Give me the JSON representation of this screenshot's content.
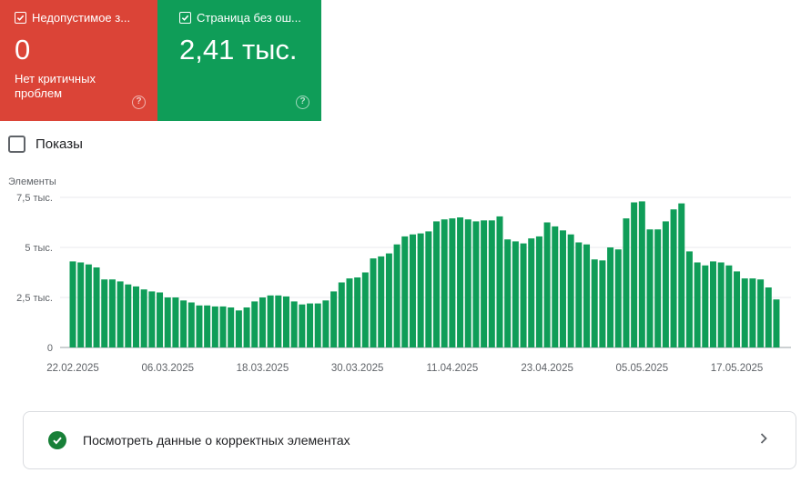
{
  "cards": {
    "error": {
      "title": "Недопустимое з...",
      "value": "0",
      "subtitle": "Нет критичных проблем",
      "color": "#db4437",
      "help_icon": "help-circle-icon"
    },
    "valid": {
      "title": "Страница без ош...",
      "value": "2,41 тыс.",
      "color": "#0f9d58",
      "help_icon": "help-circle-icon"
    }
  },
  "impressions": {
    "label": "Показы",
    "checked": false
  },
  "summary": {
    "label": "Посмотреть данные о корректных элементах",
    "icon": "check-circle-icon",
    "chevron": "chevron-right-icon"
  },
  "chart_data": {
    "type": "bar",
    "ylabel": "Элементы",
    "ylim": [
      0,
      7500
    ],
    "yticks": [
      0,
      2500,
      5000,
      7500
    ],
    "ytick_labels": [
      "0",
      "2,5 тыс.",
      "5 тыс.",
      "7,5 тыс."
    ],
    "xtick_labels": [
      {
        "index": 0,
        "label": "22.02.2025"
      },
      {
        "index": 12,
        "label": "06.03.2025"
      },
      {
        "index": 24,
        "label": "18.03.2025"
      },
      {
        "index": 36,
        "label": "30.03.2025"
      },
      {
        "index": 48,
        "label": "11.04.2025"
      },
      {
        "index": 60,
        "label": "23.04.2025"
      },
      {
        "index": 72,
        "label": "05.05.2025"
      },
      {
        "index": 84,
        "label": "17.05.2025"
      }
    ],
    "grid": true,
    "bar_color": "#0f9d58",
    "values": [
      4300,
      4250,
      4150,
      4000,
      3400,
      3400,
      3300,
      3150,
      3050,
      2900,
      2800,
      2750,
      2500,
      2500,
      2350,
      2250,
      2100,
      2100,
      2050,
      2050,
      2000,
      1850,
      2000,
      2300,
      2500,
      2600,
      2600,
      2550,
      2300,
      2150,
      2200,
      2200,
      2350,
      2800,
      3250,
      3450,
      3500,
      3750,
      4450,
      4550,
      4700,
      5150,
      5550,
      5650,
      5700,
      5800,
      6300,
      6400,
      6450,
      6500,
      6400,
      6300,
      6350,
      6350,
      6550,
      5400,
      5300,
      5200,
      5450,
      5550,
      6250,
      6050,
      5850,
      5650,
      5250,
      5150,
      4400,
      4350,
      5000,
      4900,
      6450,
      7250,
      7300,
      5900,
      5900,
      6300,
      6900,
      7200,
      4800,
      4250,
      4100,
      4300,
      4250,
      4100,
      3800,
      3450,
      3450,
      3400,
      3000,
      2400
    ]
  }
}
